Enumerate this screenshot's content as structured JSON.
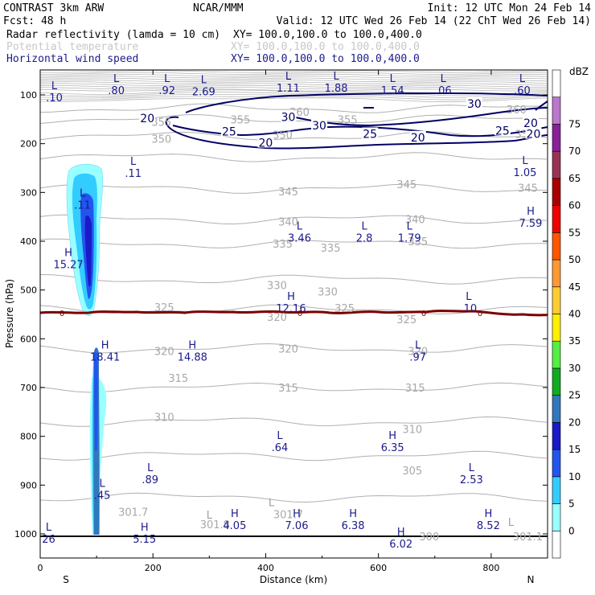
{
  "header": {
    "model": "CONTRAST  3km ARW",
    "center": "NCAR/MMM",
    "init": "Init: 12 UTC Mon 24 Feb 14",
    "fcst": "Fcst:    48 h",
    "valid": "Valid: 12 UTC Wed 26 Feb 14 (22 ChT Wed 26 Feb 14)",
    "fields": [
      {
        "name": "Radar reflectivity (lamda = 10 cm)",
        "xy": "XY= 100.0,100.0 to 100.0,400.0",
        "color": "#000000"
      },
      {
        "name": "Potential temperature",
        "xy": "XY= 100.0,100.0 to 100.0,400.0",
        "color": "#c8c8c8"
      },
      {
        "name": "Horizontal wind speed",
        "xy": "XY= 100.0,100.0 to 100.0,400.0",
        "color": "#1a1a8c"
      }
    ]
  },
  "chart_data": {
    "type": "cross-section",
    "xlabel": "Distance (km)",
    "ylabel": "Pressure (hPa)",
    "xlim": [
      0,
      900
    ],
    "ylim": [
      1050,
      50
    ],
    "x_ticks": [
      0,
      200,
      400,
      600,
      800
    ],
    "y_ticks": [
      100,
      200,
      300,
      400,
      500,
      600,
      700,
      800,
      900,
      1000
    ],
    "left_end": "S",
    "right_end": "N",
    "colorbar": {
      "unit": "dBZ",
      "levels": [
        0,
        5,
        10,
        15,
        20,
        25,
        30,
        35,
        40,
        45,
        50,
        55,
        60,
        65,
        70,
        75
      ],
      "colors": [
        "#ffffff",
        "#99ffff",
        "#33ccff",
        "#2255ee",
        "#1a1ac8",
        "#3377bb",
        "#11aa22",
        "#55ee44",
        "#ffee00",
        "#ffcc33",
        "#ff9933",
        "#ff5500",
        "#ee0000",
        "#aa0000",
        "#993355",
        "#882299",
        "#bb77cc",
        "#ffffff"
      ]
    },
    "theta_labels": [
      {
        "text": "360",
        "x": 460,
        "p": 135
      },
      {
        "text": "360",
        "x": 845,
        "p": 130
      },
      {
        "text": "355",
        "x": 215,
        "p": 155
      },
      {
        "text": "355",
        "x": 355,
        "p": 150
      },
      {
        "text": "355",
        "x": 545,
        "p": 150
      },
      {
        "text": "350",
        "x": 215,
        "p": 190
      },
      {
        "text": "350",
        "x": 430,
        "p": 182
      },
      {
        "text": "350",
        "x": 860,
        "p": 180
      },
      {
        "text": "345",
        "x": 440,
        "p": 298
      },
      {
        "text": "345",
        "x": 650,
        "p": 283
      },
      {
        "text": "345",
        "x": 865,
        "p": 290
      },
      {
        "text": "340",
        "x": 440,
        "p": 360
      },
      {
        "text": "340",
        "x": 665,
        "p": 355
      },
      {
        "text": "335",
        "x": 430,
        "p": 405
      },
      {
        "text": "335",
        "x": 515,
        "p": 413
      },
      {
        "text": "335",
        "x": 670,
        "p": 400
      },
      {
        "text": "330",
        "x": 420,
        "p": 490
      },
      {
        "text": "330",
        "x": 510,
        "p": 503
      },
      {
        "text": "325",
        "x": 220,
        "p": 535
      },
      {
        "text": "325",
        "x": 540,
        "p": 537
      },
      {
        "text": "325",
        "x": 650,
        "p": 560
      },
      {
        "text": "320",
        "x": 420,
        "p": 555
      },
      {
        "text": "320",
        "x": 220,
        "p": 625
      },
      {
        "text": "320",
        "x": 440,
        "p": 620
      },
      {
        "text": "320",
        "x": 670,
        "p": 625
      },
      {
        "text": "315",
        "x": 245,
        "p": 680
      },
      {
        "text": "315",
        "x": 440,
        "p": 700
      },
      {
        "text": "315",
        "x": 665,
        "p": 700
      },
      {
        "text": "310",
        "x": 220,
        "p": 760
      },
      {
        "text": "310",
        "x": 660,
        "p": 785
      },
      {
        "text": "305",
        "x": 660,
        "p": 870
      },
      {
        "text": "301.7",
        "x": 165,
        "p": 955
      },
      {
        "text": "301.8",
        "x": 310,
        "p": 980
      },
      {
        "text": "301.7",
        "x": 440,
        "p": 960
      },
      {
        "text": "300",
        "x": 690,
        "p": 1005
      },
      {
        "text": "301.1",
        "x": 865,
        "p": 1005
      }
    ],
    "wind_labels": [
      {
        "text": "30",
        "x": 440,
        "p": 145
      },
      {
        "text": "30",
        "x": 495,
        "p": 163
      },
      {
        "text": "30",
        "x": 770,
        "p": 118
      },
      {
        "text": "25",
        "x": 335,
        "p": 175
      },
      {
        "text": "25",
        "x": 585,
        "p": 180
      },
      {
        "text": "25",
        "x": 820,
        "p": 173
      },
      {
        "text": "20",
        "x": 190,
        "p": 148
      },
      {
        "text": "20",
        "x": 400,
        "p": 198
      },
      {
        "text": "20",
        "x": 670,
        "p": 187
      },
      {
        "text": "20",
        "x": 870,
        "p": 158
      },
      {
        "text": "20",
        "x": 875,
        "p": 180
      }
    ],
    "extrema": [
      {
        "kind": "L",
        "value": ".10",
        "x": 25,
        "p": 95
      },
      {
        "kind": "L",
        "value": ".80",
        "x": 135,
        "p": 80
      },
      {
        "kind": "L",
        "value": ".92",
        "x": 225,
        "p": 80
      },
      {
        "kind": "L",
        "value": "2.69",
        "x": 290,
        "p": 83
      },
      {
        "kind": "L",
        "value": "1.11",
        "x": 440,
        "p": 75
      },
      {
        "kind": "L",
        "value": "1.88",
        "x": 525,
        "p": 75
      },
      {
        "kind": "L",
        "value": "1.54",
        "x": 625,
        "p": 80
      },
      {
        "kind": "L",
        "value": ".06",
        "x": 715,
        "p": 80
      },
      {
        "kind": "L",
        "value": ".60",
        "x": 855,
        "p": 80
      },
      {
        "kind": "L",
        "value": ".11",
        "x": 165,
        "p": 250
      },
      {
        "kind": "L",
        "value": "1.05",
        "x": 860,
        "p": 248
      },
      {
        "kind": "L",
        "value": ".11",
        "x": 75,
        "p": 315
      },
      {
        "kind": "L",
        "value": "3.46",
        "x": 460,
        "p": 383
      },
      {
        "kind": "L",
        "value": "2.8",
        "x": 575,
        "p": 383
      },
      {
        "kind": "L",
        "value": "1.79",
        "x": 655,
        "p": 383
      },
      {
        "kind": "H",
        "value": "7.59",
        "x": 870,
        "p": 352
      },
      {
        "kind": "H",
        "value": "15.27",
        "x": 50,
        "p": 437
      },
      {
        "kind": "H",
        "value": "12.16",
        "x": 445,
        "p": 527
      },
      {
        "kind": "L",
        "value": ".10",
        "x": 760,
        "p": 527
      },
      {
        "kind": "H",
        "value": "18.41",
        "x": 115,
        "p": 627
      },
      {
        "kind": "H",
        "value": "14.88",
        "x": 270,
        "p": 627
      },
      {
        "kind": "L",
        "value": ".97",
        "x": 670,
        "p": 627
      },
      {
        "kind": "L",
        "value": ".64",
        "x": 425,
        "p": 812
      },
      {
        "kind": "H",
        "value": "6.35",
        "x": 625,
        "p": 812
      },
      {
        "kind": "L",
        "value": ".89",
        "x": 195,
        "p": 878
      },
      {
        "kind": "L",
        "value": "2.53",
        "x": 765,
        "p": 878
      },
      {
        "kind": "L",
        "value": ".45",
        "x": 110,
        "p": 910
      },
      {
        "kind": "H",
        "value": "4.05",
        "x": 345,
        "p": 972
      },
      {
        "kind": "H",
        "value": "7.06",
        "x": 455,
        "p": 972
      },
      {
        "kind": "H",
        "value": "6.38",
        "x": 555,
        "p": 972
      },
      {
        "kind": "H",
        "value": "8.52",
        "x": 795,
        "p": 972
      },
      {
        "kind": "L",
        "value": "26",
        "x": 15,
        "p": 1000
      },
      {
        "kind": "H",
        "value": "5.15",
        "x": 185,
        "p": 1000
      },
      {
        "kind": "H",
        "value": "6.02",
        "x": 640,
        "p": 1010
      },
      {
        "kind": "L",
        "value": "",
        "x": 300,
        "p": 975
      },
      {
        "kind": "L",
        "value": "",
        "x": 410,
        "p": 950
      },
      {
        "kind": "L",
        "value": "",
        "x": 835,
        "p": 990
      }
    ],
    "zero_contour_label": "0"
  }
}
